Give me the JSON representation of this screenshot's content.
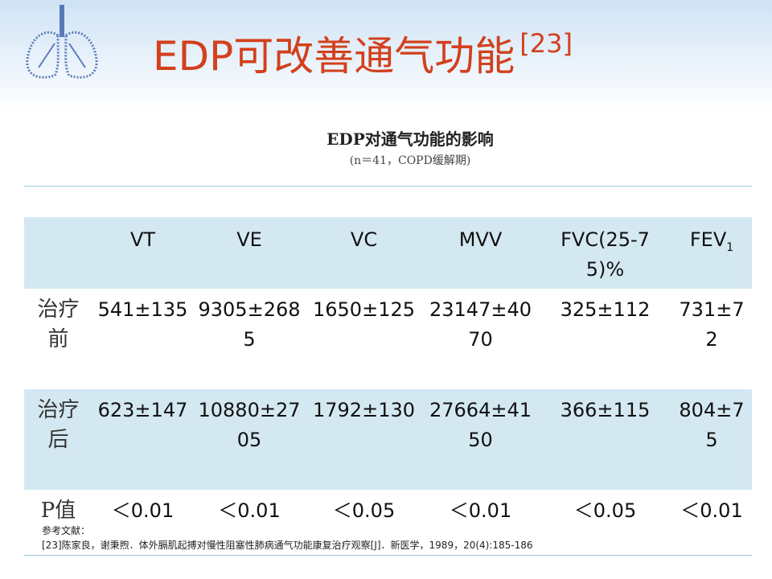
{
  "header": {
    "title": "EDP可改善通气功能",
    "citation": "[23]"
  },
  "table": {
    "caption": "EDP对通气功能的影响",
    "subcaption": "(n＝41，COPD缓解期)",
    "columns": [
      "VT",
      "VE",
      "VC",
      "MVV",
      "FVC(25-75)%",
      "FEV"
    ],
    "last_column_subscript": "1",
    "rows": [
      [
        "治疗前",
        "541±135",
        "9305±2685",
        "1650±125",
        "23147±4070",
        "325±112",
        "731±72"
      ],
      [
        "治疗后",
        "623±147",
        "10880±2705",
        "1792±130",
        "27664±4150",
        "366±115",
        "804±75"
      ],
      [
        "P值",
        "＜0.01",
        "＜0.01",
        "＜0.05",
        "＜0.01",
        "＜0.05",
        "＜0.01"
      ]
    ]
  },
  "reference": {
    "heading": "参考文献：",
    "text": "[23]陈家良，谢秉煦．体外膈肌起搏对慢性阻塞性肺病通气功能康复治疗观察[J]．新医学，1989，20(4):185-186"
  }
}
